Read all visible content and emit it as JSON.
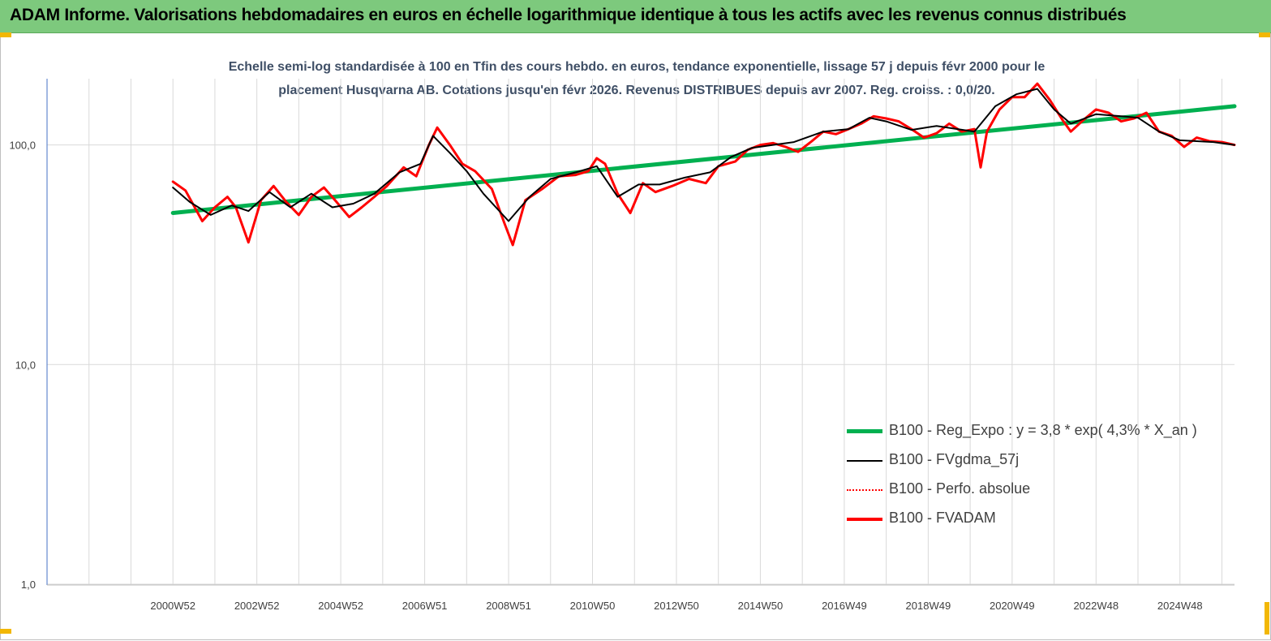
{
  "header": {
    "title": "ADAM Informe. Valorisations hebdomadaires en euros en échelle logarithmique identique à tous les actifs avec les revenus connus distribués"
  },
  "chart_data": {
    "type": "line",
    "title_line1": "Echelle semi-log standardisée à 100 en Tfin des cours hebdo. en euros, tendance exponentielle, lissage 57 j depuis févr 2000 pour le",
    "title_line2": "placement Husqvarna AB. Cotations jusqu'en févr 2026. Revenus DISTRIBUES depuis avr 2007. Reg. croiss. : 0,0/20.",
    "y_scale": "log",
    "ylim": [
      1,
      180
    ],
    "y_ticks": [
      {
        "value": 1,
        "label": "1,0"
      },
      {
        "value": 10,
        "label": "10,0"
      },
      {
        "value": 100,
        "label": "100,0"
      }
    ],
    "x_range": [
      1998.0,
      2026.3
    ],
    "x_tick_labels": [
      {
        "x": 2001,
        "label": "2000W52"
      },
      {
        "x": 2003,
        "label": "2002W52"
      },
      {
        "x": 2005,
        "label": "2004W52"
      },
      {
        "x": 2007,
        "label": "2006W51"
      },
      {
        "x": 2009,
        "label": "2008W51"
      },
      {
        "x": 2011,
        "label": "2010W50"
      },
      {
        "x": 2013,
        "label": "2012W50"
      },
      {
        "x": 2015,
        "label": "2014W50"
      },
      {
        "x": 2017,
        "label": "2016W49"
      },
      {
        "x": 2019,
        "label": "2018W49"
      },
      {
        "x": 2021,
        "label": "2020W49"
      },
      {
        "x": 2023,
        "label": "2022W48"
      },
      {
        "x": 2025,
        "label": "2024W48"
      }
    ],
    "legend_position": "bottom-right",
    "series": [
      {
        "name": "B100 - Reg_Expo : y = 3,8 * exp( 4,3% *  X_an )",
        "color": "#00b050",
        "width": 5,
        "dash": "",
        "points": [
          [
            2001.0,
            49
          ],
          [
            2026.3,
            150
          ]
        ]
      },
      {
        "name": "B100 - FVgdma_57j",
        "color": "#000000",
        "width": 2,
        "dash": "",
        "points": [
          [
            2001.0,
            64
          ],
          [
            2001.4,
            55
          ],
          [
            2001.9,
            48
          ],
          [
            2002.4,
            53
          ],
          [
            2002.8,
            50
          ],
          [
            2003.3,
            61
          ],
          [
            2003.8,
            52
          ],
          [
            2004.3,
            60
          ],
          [
            2004.8,
            52
          ],
          [
            2005.3,
            54
          ],
          [
            2005.8,
            60
          ],
          [
            2006.4,
            75
          ],
          [
            2006.9,
            82
          ],
          [
            2007.2,
            110
          ],
          [
            2007.6,
            92
          ],
          [
            2008.0,
            76
          ],
          [
            2008.4,
            60
          ],
          [
            2009.0,
            45
          ],
          [
            2009.5,
            58
          ],
          [
            2010.0,
            70
          ],
          [
            2010.6,
            75
          ],
          [
            2011.1,
            80
          ],
          [
            2011.6,
            58
          ],
          [
            2012.1,
            66
          ],
          [
            2012.6,
            66
          ],
          [
            2013.2,
            71
          ],
          [
            2013.8,
            75
          ],
          [
            2014.3,
            88
          ],
          [
            2014.8,
            97
          ],
          [
            2015.3,
            100
          ],
          [
            2015.8,
            103
          ],
          [
            2016.5,
            115
          ],
          [
            2017.1,
            118
          ],
          [
            2017.6,
            133
          ],
          [
            2018.0,
            128
          ],
          [
            2018.6,
            117
          ],
          [
            2019.2,
            122
          ],
          [
            2019.7,
            118
          ],
          [
            2020.1,
            115
          ],
          [
            2020.6,
            150
          ],
          [
            2021.1,
            170
          ],
          [
            2021.6,
            180
          ],
          [
            2022.0,
            145
          ],
          [
            2022.4,
            125
          ],
          [
            2023.0,
            138
          ],
          [
            2023.6,
            135
          ],
          [
            2024.0,
            133
          ],
          [
            2024.5,
            115
          ],
          [
            2025.0,
            105
          ],
          [
            2025.4,
            104
          ],
          [
            2025.8,
            103
          ],
          [
            2026.3,
            100
          ]
        ]
      },
      {
        "name": "B100 - Perfo. absolue",
        "color": "#ff0000",
        "width": 1.5,
        "dash": "3,2",
        "points": [
          [
            2001.0,
            68
          ],
          [
            2001.3,
            62
          ],
          [
            2001.7,
            45
          ],
          [
            2002.0,
            52
          ],
          [
            2002.3,
            58
          ],
          [
            2002.5,
            52
          ],
          [
            2002.8,
            36
          ],
          [
            2003.1,
            56
          ],
          [
            2003.4,
            65
          ],
          [
            2003.7,
            55
          ],
          [
            2004.0,
            48
          ],
          [
            2004.3,
            58
          ],
          [
            2004.6,
            64
          ],
          [
            2004.9,
            55
          ],
          [
            2005.2,
            47
          ],
          [
            2005.5,
            52
          ],
          [
            2005.8,
            58
          ],
          [
            2006.1,
            65
          ],
          [
            2006.5,
            79
          ],
          [
            2006.8,
            72
          ],
          [
            2007.1,
            100
          ],
          [
            2007.3,
            120
          ],
          [
            2007.6,
            100
          ],
          [
            2007.9,
            82
          ],
          [
            2008.2,
            76
          ],
          [
            2008.6,
            63
          ],
          [
            2008.9,
            44
          ],
          [
            2009.1,
            35
          ],
          [
            2009.4,
            56
          ],
          [
            2009.8,
            63
          ],
          [
            2010.2,
            72
          ],
          [
            2010.6,
            73
          ],
          [
            2010.9,
            76
          ],
          [
            2011.1,
            87
          ],
          [
            2011.3,
            82
          ],
          [
            2011.6,
            60
          ],
          [
            2011.9,
            49
          ],
          [
            2012.2,
            67
          ],
          [
            2012.5,
            61
          ],
          [
            2012.9,
            65
          ],
          [
            2013.3,
            70
          ],
          [
            2013.7,
            67
          ],
          [
            2014.0,
            80
          ],
          [
            2014.4,
            84
          ],
          [
            2014.7,
            95
          ],
          [
            2015.0,
            100
          ],
          [
            2015.3,
            102
          ],
          [
            2015.6,
            98
          ],
          [
            2015.9,
            93
          ],
          [
            2016.2,
            103
          ],
          [
            2016.5,
            115
          ],
          [
            2016.8,
            112
          ],
          [
            2017.1,
            118
          ],
          [
            2017.4,
            125
          ],
          [
            2017.7,
            135
          ],
          [
            2018.0,
            132
          ],
          [
            2018.3,
            128
          ],
          [
            2018.6,
            118
          ],
          [
            2018.9,
            108
          ],
          [
            2019.2,
            113
          ],
          [
            2019.5,
            125
          ],
          [
            2019.8,
            115
          ],
          [
            2020.1,
            118
          ],
          [
            2020.25,
            79
          ],
          [
            2020.4,
            115
          ],
          [
            2020.7,
            145
          ],
          [
            2021.0,
            165
          ],
          [
            2021.3,
            165
          ],
          [
            2021.6,
            190
          ],
          [
            2021.9,
            160
          ],
          [
            2022.2,
            130
          ],
          [
            2022.4,
            115
          ],
          [
            2022.7,
            130
          ],
          [
            2023.0,
            145
          ],
          [
            2023.3,
            140
          ],
          [
            2023.6,
            128
          ],
          [
            2023.9,
            132
          ],
          [
            2024.2,
            140
          ],
          [
            2024.5,
            115
          ],
          [
            2024.8,
            110
          ],
          [
            2025.1,
            98
          ],
          [
            2025.4,
            108
          ],
          [
            2025.7,
            104
          ],
          [
            2026.0,
            103
          ],
          [
            2026.3,
            100
          ]
        ]
      },
      {
        "name": "B100 - FVADAM",
        "color": "#ff0000",
        "width": 3,
        "dash": "",
        "points": [
          [
            2001.0,
            68
          ],
          [
            2001.3,
            62
          ],
          [
            2001.7,
            45
          ],
          [
            2002.0,
            52
          ],
          [
            2002.3,
            58
          ],
          [
            2002.5,
            52
          ],
          [
            2002.8,
            36
          ],
          [
            2003.1,
            56
          ],
          [
            2003.4,
            65
          ],
          [
            2003.7,
            55
          ],
          [
            2004.0,
            48
          ],
          [
            2004.3,
            58
          ],
          [
            2004.6,
            64
          ],
          [
            2004.9,
            55
          ],
          [
            2005.2,
            47
          ],
          [
            2005.5,
            52
          ],
          [
            2005.8,
            58
          ],
          [
            2006.1,
            65
          ],
          [
            2006.5,
            79
          ],
          [
            2006.8,
            72
          ],
          [
            2007.1,
            100
          ],
          [
            2007.3,
            120
          ],
          [
            2007.6,
            100
          ],
          [
            2007.9,
            82
          ],
          [
            2008.2,
            76
          ],
          [
            2008.6,
            63
          ],
          [
            2008.9,
            44
          ],
          [
            2009.1,
            35
          ],
          [
            2009.4,
            56
          ],
          [
            2009.8,
            63
          ],
          [
            2010.2,
            72
          ],
          [
            2010.6,
            73
          ],
          [
            2010.9,
            76
          ],
          [
            2011.1,
            87
          ],
          [
            2011.3,
            82
          ],
          [
            2011.6,
            60
          ],
          [
            2011.9,
            49
          ],
          [
            2012.2,
            67
          ],
          [
            2012.5,
            61
          ],
          [
            2012.9,
            65
          ],
          [
            2013.3,
            70
          ],
          [
            2013.7,
            67
          ],
          [
            2014.0,
            80
          ],
          [
            2014.4,
            84
          ],
          [
            2014.7,
            95
          ],
          [
            2015.0,
            100
          ],
          [
            2015.3,
            102
          ],
          [
            2015.6,
            98
          ],
          [
            2015.9,
            93
          ],
          [
            2016.2,
            103
          ],
          [
            2016.5,
            115
          ],
          [
            2016.8,
            112
          ],
          [
            2017.1,
            118
          ],
          [
            2017.4,
            125
          ],
          [
            2017.7,
            135
          ],
          [
            2018.0,
            132
          ],
          [
            2018.3,
            128
          ],
          [
            2018.6,
            118
          ],
          [
            2018.9,
            108
          ],
          [
            2019.2,
            113
          ],
          [
            2019.5,
            125
          ],
          [
            2019.8,
            115
          ],
          [
            2020.1,
            118
          ],
          [
            2020.25,
            79
          ],
          [
            2020.4,
            115
          ],
          [
            2020.7,
            145
          ],
          [
            2021.0,
            165
          ],
          [
            2021.3,
            165
          ],
          [
            2021.6,
            190
          ],
          [
            2021.9,
            160
          ],
          [
            2022.2,
            130
          ],
          [
            2022.4,
            115
          ],
          [
            2022.7,
            130
          ],
          [
            2023.0,
            145
          ],
          [
            2023.3,
            140
          ],
          [
            2023.6,
            128
          ],
          [
            2023.9,
            132
          ],
          [
            2024.2,
            140
          ],
          [
            2024.5,
            115
          ],
          [
            2024.8,
            110
          ],
          [
            2025.1,
            98
          ],
          [
            2025.4,
            108
          ],
          [
            2025.7,
            104
          ],
          [
            2026.0,
            103
          ],
          [
            2026.3,
            100
          ]
        ]
      }
    ]
  }
}
